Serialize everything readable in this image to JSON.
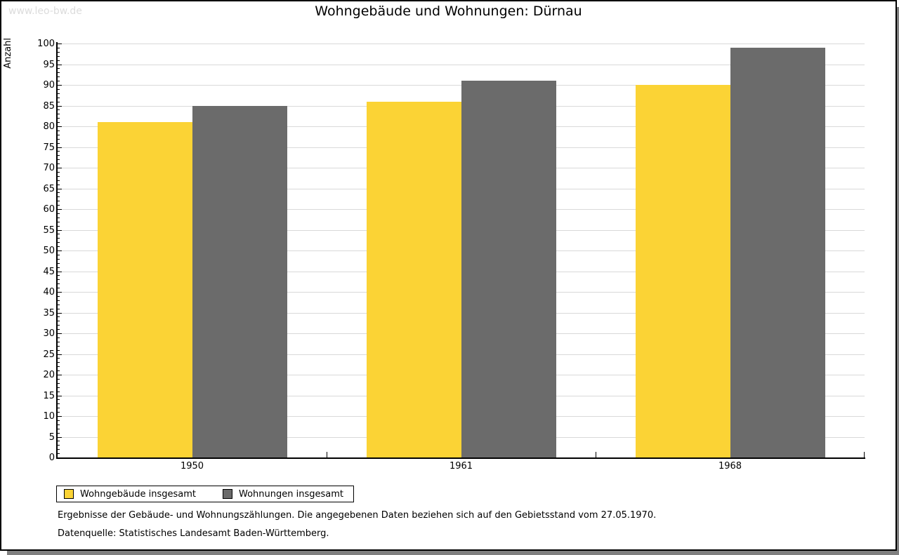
{
  "page": {
    "watermark": "www.leo-bw.de",
    "title": "Wohngebäude und Wohnungen: Dürnau",
    "footnote_line1": "Ergebnisse der Gebäude- und Wohnungszählungen. Die angegebenen Daten beziehen sich auf den Gebietsstand vom 27.05.1970.",
    "footnote_line2": "Datenquelle: Statistisches Landesamt Baden-Württemberg."
  },
  "chart_data": {
    "type": "bar",
    "title": "Wohngebäude und Wohnungen: Dürnau",
    "xlabel": "",
    "ylabel": "Anzahl",
    "categories": [
      "1950",
      "1961",
      "1968"
    ],
    "series": [
      {
        "name": "Wohngebäude insgesamt",
        "color": "#FBD335",
        "values": [
          81,
          86,
          90
        ]
      },
      {
        "name": "Wohnungen insgesamt",
        "color": "#6B6B6B",
        "values": [
          85,
          91,
          99
        ]
      }
    ],
    "ylim": [
      0,
      100
    ],
    "ytick_step": 5,
    "ytick_minor_step": 1,
    "grid": true,
    "legend_position": "bottom-left"
  },
  "colors": {
    "axis": "#000000",
    "gridline": "#D9D9D9",
    "watermark": "#DCDCDC",
    "shadow": "#808080",
    "background": "#FFFFFF"
  }
}
